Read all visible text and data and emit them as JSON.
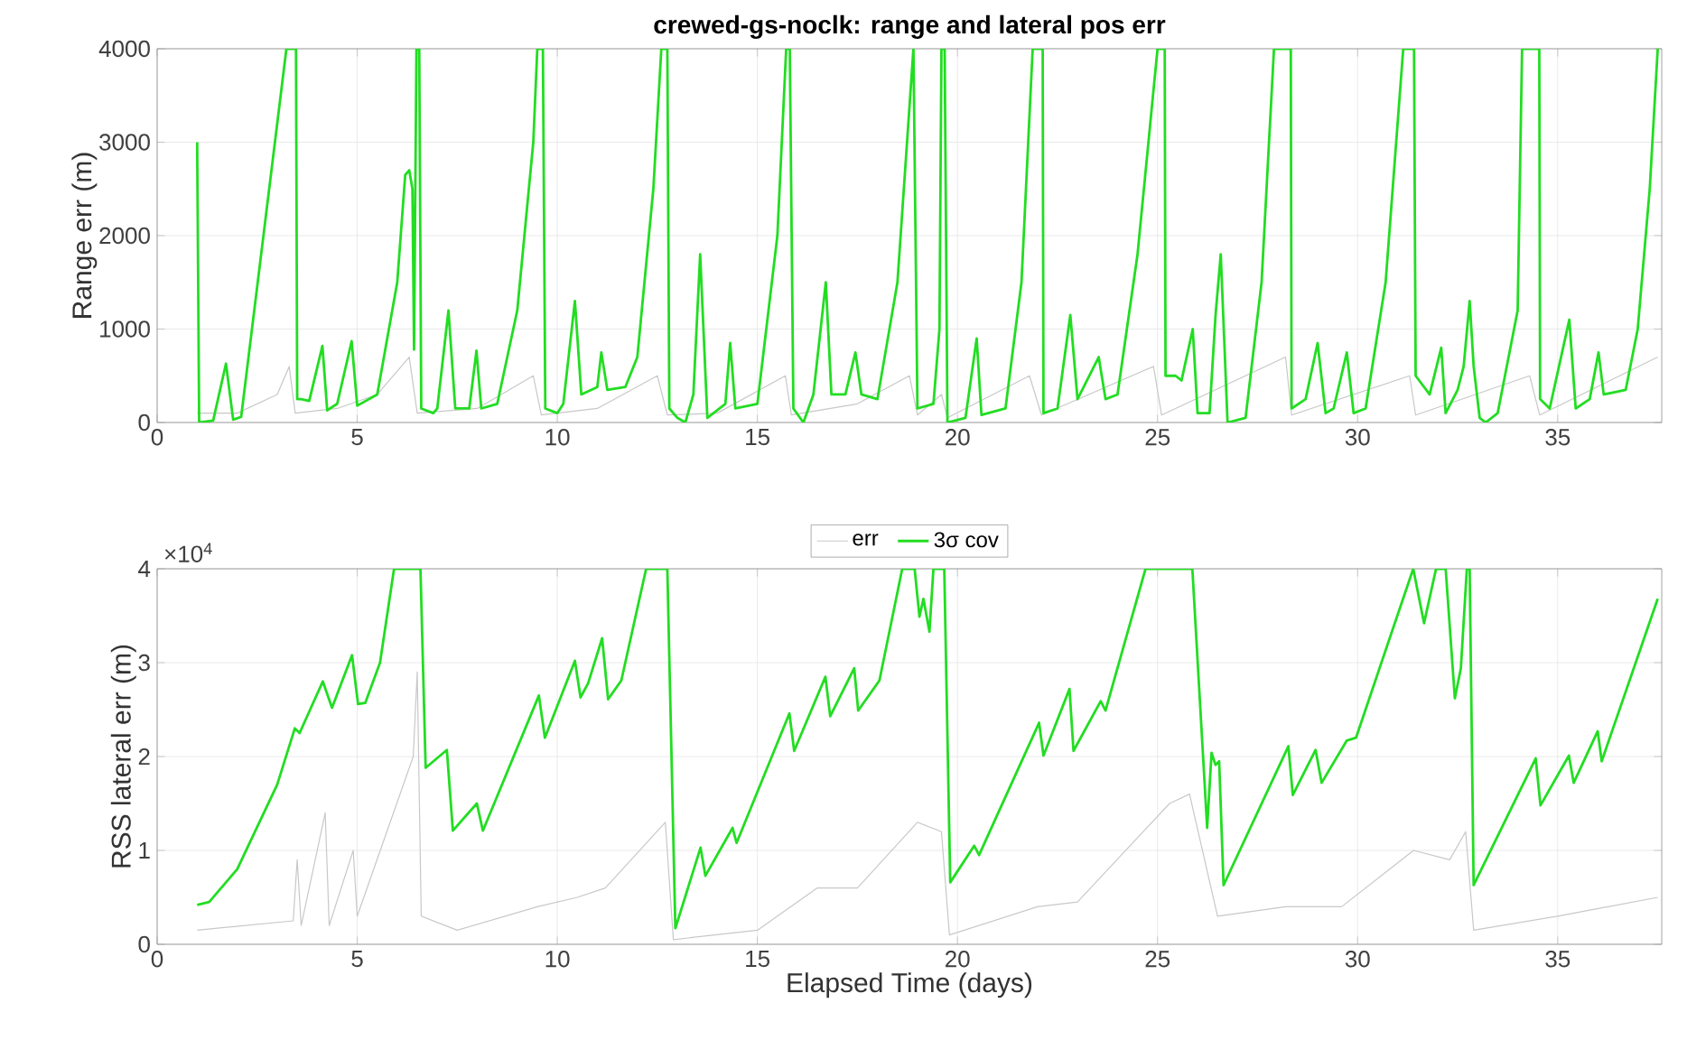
{
  "chart_data": [
    {
      "type": "line",
      "title": "crewed-gs-noclk: range and lateral pos err",
      "ylabel": "Range err (m)",
      "xlim": [
        0,
        37.6
      ],
      "ylim": [
        0,
        4000
      ],
      "xticks": [
        0,
        5,
        10,
        15,
        20,
        25,
        30,
        35
      ],
      "yticks": [
        0,
        1000,
        2000,
        3000,
        4000
      ],
      "grid": true,
      "series": [
        {
          "color": "#c8c8c8",
          "x": [
            1.0,
            2.0,
            3.0,
            3.3,
            3.45,
            4.5,
            5.5,
            6.3,
            6.5,
            8,
            9.4,
            9.6,
            11,
            12.5,
            12.75,
            14,
            15.7,
            15.85,
            17.5,
            18.8,
            19,
            19.6,
            19.75,
            21.8,
            22.1,
            24.9,
            25.1,
            28.2,
            28.35,
            31.3,
            31.45,
            34.3,
            34.55,
            37.5
          ],
          "values": [
            100,
            100,
            300,
            600,
            100,
            150,
            300,
            700,
            100,
            150,
            500,
            80,
            150,
            500,
            80,
            100,
            500,
            80,
            200,
            500,
            80,
            300,
            50,
            500,
            80,
            600,
            80,
            700,
            80,
            500,
            80,
            500,
            80,
            700
          ]
        },
        {
          "color": "#22dd22",
          "x": [
            1.0,
            1.05,
            1.4,
            1.72,
            1.9,
            2.1,
            3.23,
            3.47,
            3.5,
            3.6,
            3.8,
            4.13,
            4.25,
            4.5,
            4.86,
            5.0,
            5.5,
            6.0,
            6.2,
            6.3,
            6.38,
            6.42,
            6.48,
            6.55,
            6.6,
            6.9,
            7.0,
            7.28,
            7.45,
            7.8,
            7.98,
            8.1,
            8.5,
            9.0,
            9.4,
            9.5,
            9.64,
            9.7,
            10.0,
            10.15,
            10.44,
            10.6,
            11.0,
            11.1,
            11.25,
            11.7,
            12.0,
            12.4,
            12.6,
            12.75,
            12.8,
            13.0,
            13.2,
            13.4,
            13.57,
            13.75,
            14.2,
            14.32,
            14.45,
            15.0,
            15.5,
            15.72,
            15.81,
            15.9,
            16.15,
            16.4,
            16.71,
            16.85,
            17.2,
            17.45,
            17.6,
            18.0,
            18.5,
            18.9,
            19.0,
            19.4,
            19.55,
            19.6,
            19.68,
            19.75,
            20.2,
            20.48,
            20.6,
            21.2,
            21.6,
            21.88,
            22.13,
            22.15,
            22.5,
            22.82,
            23.0,
            23.53,
            23.7,
            24.0,
            24.5,
            25.0,
            25.18,
            25.2,
            25.45,
            25.6,
            25.88,
            26.0,
            26.3,
            26.45,
            26.58,
            26.75,
            27.2,
            27.6,
            27.91,
            28.33,
            28.35,
            28.7,
            29.0,
            29.2,
            29.4,
            29.73,
            29.9,
            30.2,
            30.7,
            31.14,
            31.41,
            31.45,
            31.8,
            32.09,
            32.2,
            32.5,
            32.65,
            32.8,
            32.9,
            33.05,
            33.2,
            33.5,
            34.0,
            34.11,
            34.54,
            34.56,
            34.8,
            35.29,
            35.45,
            35.8,
            36.02,
            36.15,
            36.7,
            37.0,
            37.3,
            37.5
          ],
          "values": [
            3000,
            0,
            20,
            630,
            30,
            60,
            4000,
            4000,
            250,
            250,
            230,
            820,
            130,
            200,
            870,
            180,
            300,
            1500,
            2650,
            2700,
            2500,
            780,
            4000,
            4000,
            150,
            100,
            150,
            1200,
            150,
            150,
            770,
            150,
            200,
            1200,
            3000,
            4000,
            4000,
            150,
            100,
            200,
            1300,
            300,
            380,
            750,
            350,
            380,
            700,
            2500,
            4000,
            4000,
            150,
            50,
            0,
            300,
            1800,
            50,
            200,
            850,
            150,
            200,
            2000,
            4000,
            4000,
            150,
            0,
            300,
            1500,
            300,
            300,
            750,
            300,
            250,
            1500,
            4000,
            150,
            200,
            1000,
            4000,
            4000,
            0,
            50,
            900,
            80,
            150,
            1500,
            4000,
            4000,
            100,
            150,
            1150,
            250,
            700,
            250,
            300,
            1800,
            4000,
            4000,
            500,
            500,
            450,
            1000,
            100,
            100,
            1150,
            1800,
            0,
            50,
            1500,
            4000,
            4000,
            150,
            250,
            850,
            100,
            150,
            750,
            100,
            150,
            1500,
            4000,
            4000,
            500,
            300,
            800,
            100,
            350,
            600,
            1300,
            600,
            50,
            0,
            100,
            1200,
            4000,
            4000,
            250,
            150,
            1100,
            150,
            250,
            750,
            300,
            350,
            1000,
            2500,
            4000
          ]
        }
      ]
    },
    {
      "type": "line",
      "xlabel": "Elapsed Time (days)",
      "ylabel": "RSS lateral err (m)",
      "xlim": [
        0,
        37.6
      ],
      "ylim": [
        0,
        4
      ],
      "xticks": [
        0,
        5,
        10,
        15,
        20,
        25,
        30,
        35
      ],
      "yticks": [
        0,
        1,
        2,
        3,
        4
      ],
      "grid": true,
      "legend": "top",
      "annotations": [
        "×10$^{4}$"
      ],
      "series": [
        {
          "name": "err",
          "color": "#c8c8c8",
          "x": [
            1.0,
            3.4,
            3.5,
            3.6,
            4.2,
            4.3,
            4.9,
            5.0,
            6.4,
            6.5,
            6.6,
            7.5,
            9.5,
            10.5,
            11.2,
            12.7,
            12.9,
            15,
            16.5,
            17.5,
            19,
            19.6,
            19.8,
            22,
            23,
            25.3,
            25.8,
            26.5,
            28.2,
            29.6,
            31.4,
            32.3,
            32.7,
            32.9,
            35,
            37.5
          ],
          "values": [
            0.15,
            0.25,
            0.9,
            0.2,
            1.4,
            0.2,
            1.0,
            0.3,
            2.0,
            2.9,
            0.3,
            0.15,
            0.4,
            0.5,
            0.6,
            1.3,
            0.05,
            0.15,
            0.6,
            0.6,
            1.3,
            1.2,
            0.1,
            0.4,
            0.45,
            1.5,
            1.6,
            0.3,
            0.4,
            0.4,
            1.0,
            0.9,
            1.2,
            0.15,
            0.3,
            0.5
          ]
        },
        {
          "name": "3σ cov",
          "color": "#22dd22",
          "x": [
            1.0,
            1.3,
            2.0,
            3.0,
            3.44,
            3.56,
            4.14,
            4.37,
            4.87,
            5.02,
            5.2,
            5.57,
            5.92,
            6.58,
            6.71,
            7.24,
            7.39,
            7.99,
            8.14,
            9.54,
            9.69,
            10.44,
            10.58,
            10.77,
            11.12,
            11.27,
            11.6,
            12.22,
            12.75,
            12.95,
            13.58,
            13.7,
            14.38,
            14.48,
            15.8,
            15.92,
            16.7,
            16.82,
            17.42,
            17.52,
            18.05,
            18.62,
            18.93,
            19.05,
            19.15,
            19.3,
            19.4,
            19.67,
            19.82,
            20.42,
            20.54,
            22.04,
            22.15,
            22.8,
            22.9,
            23.58,
            23.7,
            24.7,
            25.87,
            26.24,
            26.35,
            26.45,
            26.54,
            26.65,
            28.27,
            28.38,
            28.95,
            29.1,
            29.73,
            29.96,
            31.39,
            31.66,
            31.96,
            32.2,
            32.43,
            32.58,
            32.73,
            32.8,
            32.9,
            34.45,
            34.57,
            35.28,
            35.4,
            36.0,
            36.1,
            37.5
          ],
          "values": [
            0.42,
            0.45,
            0.8,
            1.7,
            2.3,
            2.25,
            2.8,
            2.52,
            3.08,
            2.56,
            2.57,
            3.0,
            4,
            4,
            1.88,
            2.07,
            1.21,
            1.5,
            1.21,
            2.65,
            2.2,
            3.02,
            2.63,
            2.78,
            3.26,
            2.61,
            2.81,
            4,
            4,
            0.17,
            1.03,
            0.73,
            1.24,
            1.08,
            2.46,
            2.06,
            2.85,
            2.43,
            2.94,
            2.49,
            2.81,
            4,
            4,
            3.49,
            3.68,
            3.33,
            4,
            4,
            0.66,
            1.05,
            0.95,
            2.36,
            2.01,
            2.72,
            2.06,
            2.59,
            2.49,
            4,
            4,
            1.24,
            2.04,
            1.91,
            1.95,
            0.63,
            2.11,
            1.59,
            2.07,
            1.72,
            2.17,
            2.2,
            4,
            3.42,
            4,
            4,
            2.62,
            2.94,
            4,
            4,
            0.63,
            1.98,
            1.48,
            2.01,
            1.72,
            2.27,
            1.95,
            3.68
          ]
        }
      ]
    }
  ]
}
